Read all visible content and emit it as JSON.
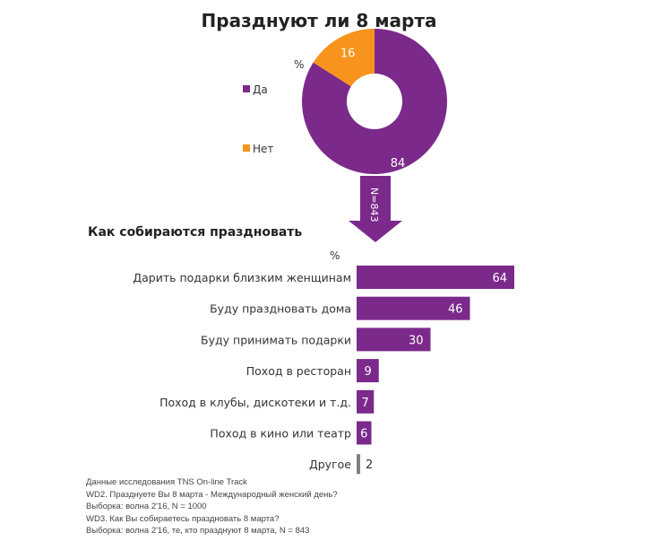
{
  "chart_data": [
    {
      "type": "pie",
      "title": "Празднуют ли 8 марта",
      "unit_label": "%",
      "categories": [
        "Да",
        "Нет"
      ],
      "values": [
        84,
        16
      ],
      "colors": [
        "#7b2a8b",
        "#f7941d"
      ],
      "legend_position": "left",
      "annotation": "N=843"
    },
    {
      "type": "bar",
      "title": "Как собираются праздновать",
      "unit_label": "%",
      "categories": [
        "Дарить подарки близким женщинам",
        "Буду праздновать дома",
        "Буду принимать подарки",
        "Поход в ресторан",
        "Поход в клубы, дискотеки и т.д.",
        "Поход в кино или театр",
        "Другое"
      ],
      "values": [
        64,
        46,
        30,
        9,
        7,
        6,
        2
      ],
      "colors": [
        "#7b2a8b",
        "#7b2a8b",
        "#7b2a8b",
        "#7b2a8b",
        "#7b2a8b",
        "#7b2a8b",
        "#808080"
      ],
      "xlim": [
        0,
        100
      ]
    }
  ],
  "footnotes": [
    "Данные исследования TNS On-line Track",
    "WD2. Празднуете Вы 8 марта - Международный женский день?",
    "Выборка: волна 2'16, N = 1000",
    "WD3. Как Вы собираетесь праздновать 8 марта?",
    "Выборка: волна 2'16, те, кто празднуют 8 марта, N = 843"
  ]
}
